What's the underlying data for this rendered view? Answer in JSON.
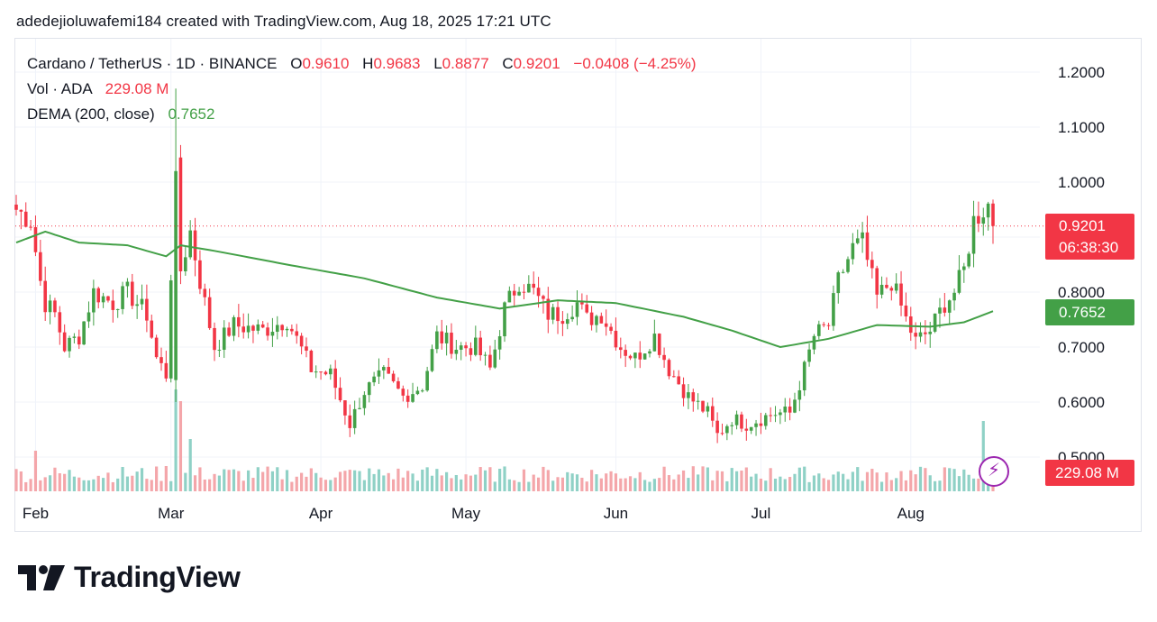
{
  "attribution": "adedejioluwafemi184 created with TradingView.com, Aug 18, 2025 17:21 UTC",
  "legend": {
    "symbol": "Cardano / TetherUS · 1D · BINANCE",
    "o_label": "O",
    "o_value": "0.9610",
    "h_label": "H",
    "h_value": "0.9683",
    "l_label": "L",
    "l_value": "0.8877",
    "c_label": "C",
    "c_value": "0.9201",
    "change": "−0.0408 (−4.25%)",
    "vol_label": "Vol · ADA",
    "vol_value": "229.08 M",
    "dema_label": "DEMA (200, close)",
    "dema_value": "0.7652"
  },
  "tags": {
    "last_price": "0.9201",
    "countdown": "06:38:30",
    "dema": "0.7652",
    "volume": "229.08 M"
  },
  "logo": {
    "text": "TradingView"
  },
  "colors": {
    "up": "#43a047",
    "down": "#f23645",
    "up_vol": "#8fd1c6",
    "down_vol": "#f4a6aa",
    "dema": "#43a047",
    "bolt": "#9c27b0"
  },
  "chart_data": {
    "type": "candlestick",
    "title": "Cardano / TetherUS · 1D · BINANCE",
    "y_ticks": [
      "1.2000",
      "1.1000",
      "1.0000",
      "0.9000",
      "0.8000",
      "0.7000",
      "0.6000",
      "0.5000"
    ],
    "ylim": [
      0.49,
      1.23
    ],
    "x_labels": [
      "Feb",
      "Mar",
      "Apr",
      "May",
      "Jun",
      "Jul",
      "Aug"
    ],
    "x_label_dates": [
      "2025-02-01",
      "2025-03-01",
      "2025-04-01",
      "2025-05-01",
      "2025-06-01",
      "2025-07-01",
      "2025-08-01"
    ],
    "date_range": [
      "2025-01-28",
      "2025-08-18"
    ],
    "last_price": 0.9201,
    "close_anchors": [
      [
        "2025-01-28",
        0.95
      ],
      [
        "2025-01-31",
        0.93
      ],
      [
        "2025-02-02",
        0.82
      ],
      [
        "2025-02-03",
        0.78
      ],
      [
        "2025-02-05",
        0.76
      ],
      [
        "2025-02-07",
        0.7
      ],
      [
        "2025-02-10",
        0.72
      ],
      [
        "2025-02-13",
        0.8
      ],
      [
        "2025-02-17",
        0.78
      ],
      [
        "2025-02-20",
        0.8
      ],
      [
        "2025-02-24",
        0.76
      ],
      [
        "2025-02-26",
        0.68
      ],
      [
        "2025-02-28",
        0.65
      ],
      [
        "2025-03-02",
        1.02
      ],
      [
        "2025-03-03",
        0.84
      ],
      [
        "2025-03-05",
        0.91
      ],
      [
        "2025-03-07",
        0.82
      ],
      [
        "2025-03-10",
        0.7
      ],
      [
        "2025-03-14",
        0.74
      ],
      [
        "2025-03-20",
        0.73
      ],
      [
        "2025-03-25",
        0.75
      ],
      [
        "2025-03-30",
        0.66
      ],
      [
        "2025-04-03",
        0.65
      ],
      [
        "2025-04-07",
        0.56
      ],
      [
        "2025-04-10",
        0.62
      ],
      [
        "2025-04-14",
        0.65
      ],
      [
        "2025-04-18",
        0.61
      ],
      [
        "2025-04-22",
        0.63
      ],
      [
        "2025-04-25",
        0.72
      ],
      [
        "2025-04-29",
        0.7
      ],
      [
        "2025-05-03",
        0.7
      ],
      [
        "2025-05-06",
        0.66
      ],
      [
        "2025-05-09",
        0.77
      ],
      [
        "2025-05-12",
        0.82
      ],
      [
        "2025-05-15",
        0.8
      ],
      [
        "2025-05-18",
        0.76
      ],
      [
        "2025-05-21",
        0.76
      ],
      [
        "2025-05-24",
        0.78
      ],
      [
        "2025-05-26",
        0.75
      ],
      [
        "2025-05-29",
        0.76
      ],
      [
        "2025-06-02",
        0.7
      ],
      [
        "2025-06-05",
        0.68
      ],
      [
        "2025-06-09",
        0.72
      ],
      [
        "2025-06-12",
        0.66
      ],
      [
        "2025-06-16",
        0.61
      ],
      [
        "2025-06-20",
        0.58
      ],
      [
        "2025-06-22",
        0.54
      ],
      [
        "2025-06-25",
        0.57
      ],
      [
        "2025-06-28",
        0.56
      ],
      [
        "2025-07-01",
        0.57
      ],
      [
        "2025-07-04",
        0.58
      ],
      [
        "2025-07-07",
        0.58
      ],
      [
        "2025-07-10",
        0.66
      ],
      [
        "2025-07-12",
        0.72
      ],
      [
        "2025-07-15",
        0.74
      ],
      [
        "2025-07-17",
        0.82
      ],
      [
        "2025-07-20",
        0.88
      ],
      [
        "2025-07-22",
        0.89
      ],
      [
        "2025-07-25",
        0.79
      ],
      [
        "2025-07-28",
        0.82
      ],
      [
        "2025-07-31",
        0.75
      ],
      [
        "2025-08-02",
        0.71
      ],
      [
        "2025-08-05",
        0.73
      ],
      [
        "2025-08-08",
        0.78
      ],
      [
        "2025-08-10",
        0.8
      ],
      [
        "2025-08-12",
        0.84
      ],
      [
        "2025-08-14",
        0.93
      ],
      [
        "2025-08-16",
        0.95
      ],
      [
        "2025-08-17",
        0.9609
      ],
      [
        "2025-08-18",
        0.9201
      ]
    ],
    "dema_anchors": [
      [
        "2025-01-28",
        0.89
      ],
      [
        "2025-02-03",
        0.91
      ],
      [
        "2025-02-10",
        0.89
      ],
      [
        "2025-02-20",
        0.885
      ],
      [
        "2025-02-28",
        0.865
      ],
      [
        "2025-03-03",
        0.885
      ],
      [
        "2025-03-10",
        0.875
      ],
      [
        "2025-03-25",
        0.85
      ],
      [
        "2025-04-10",
        0.825
      ],
      [
        "2025-04-25",
        0.79
      ],
      [
        "2025-05-08",
        0.77
      ],
      [
        "2025-05-20",
        0.785
      ],
      [
        "2025-06-01",
        0.78
      ],
      [
        "2025-06-15",
        0.755
      ],
      [
        "2025-06-25",
        0.73
      ],
      [
        "2025-07-05",
        0.7
      ],
      [
        "2025-07-15",
        0.715
      ],
      [
        "2025-07-25",
        0.74
      ],
      [
        "2025-08-05",
        0.737
      ],
      [
        "2025-08-12",
        0.745
      ],
      [
        "2025-08-18",
        0.7652
      ]
    ],
    "volume_last": "229.08 M"
  }
}
